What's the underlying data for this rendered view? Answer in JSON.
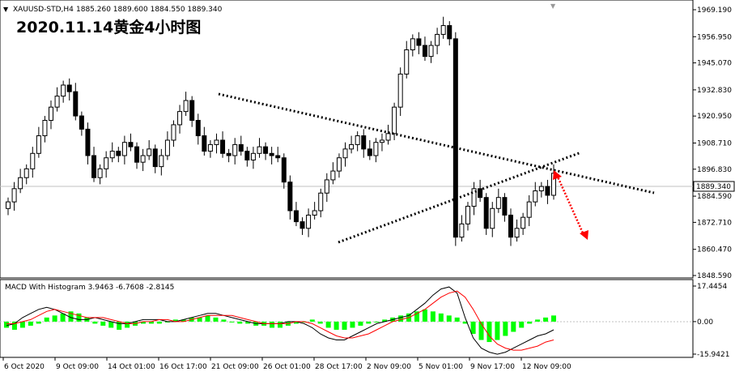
{
  "chart_data": [
    {
      "type": "candlestick",
      "symbol_header": "XAUUSD-STD,H4",
      "ohlc_header": "1885.260 1889.600 1884.550 1889.340",
      "overlay_title": "2020.11.14黄金4小时图",
      "y_ticks": [
        "1969.190",
        "1956.950",
        "1945.070",
        "1932.830",
        "1920.950",
        "1908.710",
        "1896.830",
        "1884.590",
        "1872.710",
        "1860.470",
        "1848.590"
      ],
      "ylim": [
        1848.59,
        1969.19
      ],
      "current_price": "1889.340",
      "x_ticks": [
        "6 Oct 2020",
        "9 Oct 09:00",
        "14 Oct 01:00",
        "16 Oct 17:00",
        "21 Oct 09:00",
        "26 Oct 01:00",
        "28 Oct 17:00",
        "2 Nov 09:00",
        "5 Nov 01:00",
        "9 Nov 17:00",
        "12 Nov 09:00"
      ],
      "colors": {
        "bull": "#ffffff",
        "bear": "#000000",
        "outline": "#000000",
        "price_line": "#c0c0c0",
        "trendline": "#000000",
        "arrow": "#ff0000"
      },
      "approx_closes": [
        1882,
        1888,
        1893,
        1897,
        1904,
        1912,
        1919,
        1925,
        1930,
        1935,
        1932,
        1921,
        1915,
        1903,
        1893,
        1897,
        1902,
        1905,
        1903,
        1909,
        1907,
        1900,
        1903,
        1906,
        1898,
        1903,
        1910,
        1917,
        1923,
        1928,
        1919,
        1912,
        1905,
        1908,
        1910,
        1904,
        1903,
        1908,
        1905,
        1901,
        1904,
        1907,
        1904,
        1903,
        1902,
        1891,
        1878,
        1873,
        1870,
        1876,
        1878,
        1886,
        1892,
        1896,
        1902,
        1906,
        1908,
        1912,
        1906,
        1903,
        1909,
        1910,
        1913,
        1925,
        1940,
        1951,
        1956,
        1953,
        1948,
        1953,
        1958,
        1962,
        1956,
        1866,
        1872,
        1880,
        1888,
        1884,
        1870,
        1879,
        1884,
        1876,
        1866,
        1870,
        1875,
        1882,
        1887,
        1889,
        1885,
        1895
      ]
    },
    {
      "type": "line",
      "title": "MACD With Histogram 3.9463 -6.7608 -2.8145",
      "y_ticks": [
        "17.4454",
        "0.00",
        "-15.9421"
      ],
      "ylim": [
        -15.9421,
        17.4454
      ],
      "series": [
        {
          "name": "",
          "color": "#000000",
          "values": [
            -2,
            -1,
            2,
            4,
            6,
            7,
            6,
            4,
            2,
            1,
            1,
            2,
            1,
            0,
            -1,
            -1,
            0,
            1,
            1,
            1,
            0,
            0,
            1,
            2,
            3,
            4,
            4,
            3,
            2,
            1,
            0,
            -1,
            -1,
            -1,
            -1,
            0,
            0,
            -1,
            -3,
            -6,
            -8,
            -9,
            -9,
            -7,
            -5,
            -3,
            -1,
            0,
            1,
            2,
            3,
            6,
            9,
            13,
            16,
            17,
            14,
            2,
            -8,
            -13,
            -15,
            -16,
            -15,
            -13,
            -11,
            -9,
            -7,
            -6,
            -4
          ]
        },
        {
          "name": "",
          "color": "#ff0000",
          "values": [
            -1,
            -1,
            0,
            1,
            3,
            5,
            6,
            5,
            4,
            3,
            2,
            2,
            2,
            1,
            0,
            -1,
            -1,
            0,
            0,
            1,
            1,
            0,
            0,
            1,
            2,
            3,
            3,
            3,
            3,
            2,
            1,
            0,
            -1,
            -1,
            -1,
            -1,
            0,
            0,
            -1,
            -3,
            -5,
            -7,
            -8,
            -8,
            -7,
            -6,
            -4,
            -2,
            0,
            1,
            2,
            4,
            6,
            9,
            12,
            14,
            15,
            12,
            6,
            -1,
            -7,
            -11,
            -13,
            -14,
            -14,
            -13,
            -12,
            -10,
            -9
          ]
        }
      ],
      "histogram_color": "#00ff00",
      "histogram": [
        -3,
        -4,
        -3,
        -2,
        -1,
        2,
        3,
        4,
        5,
        4,
        2,
        -1,
        -2,
        -3,
        -4,
        -3,
        -2,
        -1,
        -1,
        -1,
        0,
        1,
        1,
        2,
        2,
        3,
        2,
        1,
        0,
        -1,
        -1,
        -2,
        -2,
        -3,
        -3,
        -2,
        -1,
        0,
        1,
        -1,
        -3,
        -4,
        -4,
        -3,
        -2,
        -1,
        0,
        1,
        2,
        3,
        4,
        5,
        6,
        5,
        4,
        3,
        2,
        -1,
        -6,
        -9,
        -10,
        -9,
        -7,
        -5,
        -3,
        -1,
        1,
        2,
        3
      ]
    }
  ]
}
